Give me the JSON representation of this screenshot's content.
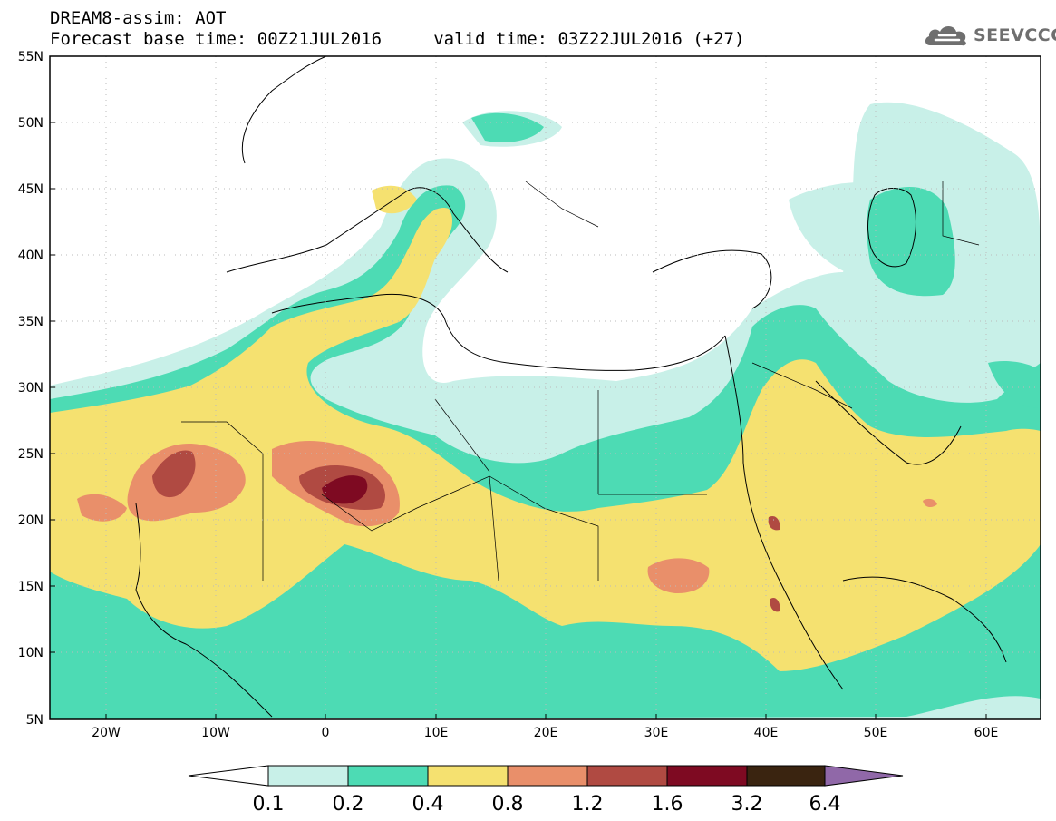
{
  "header": {
    "line1": "DREAM8-assim: AOT",
    "line2": "Forecast base time: 00Z21JUL2016     valid time: 03Z22JUL2016 (+27)"
  },
  "brand": {
    "name": "SEEVCCC",
    "icon": "cloud-logo-icon"
  },
  "map": {
    "projection": "lat-lon",
    "lat_range": [
      5,
      55
    ],
    "lon_range": [
      -25,
      65
    ],
    "lat_labels": [
      "55N",
      "50N",
      "45N",
      "40N",
      "35N",
      "30N",
      "25N",
      "20N",
      "15N",
      "10N",
      "5N"
    ],
    "lon_labels": [
      "20W",
      "10W",
      "0",
      "10E",
      "20E",
      "30E",
      "40E",
      "50E",
      "60E"
    ],
    "gridlines": "dotted"
  },
  "colorbar": {
    "labels": [
      "0.1",
      "0.2",
      "0.4",
      "0.8",
      "1.2",
      "1.6",
      "3.2",
      "6.4"
    ],
    "colors": [
      "#ffffff",
      "#c8f0e8",
      "#4ddbb4",
      "#f5e170",
      "#e98f6a",
      "#b04a42",
      "#7e0a22",
      "#3a2410",
      "#9068a8"
    ]
  }
}
